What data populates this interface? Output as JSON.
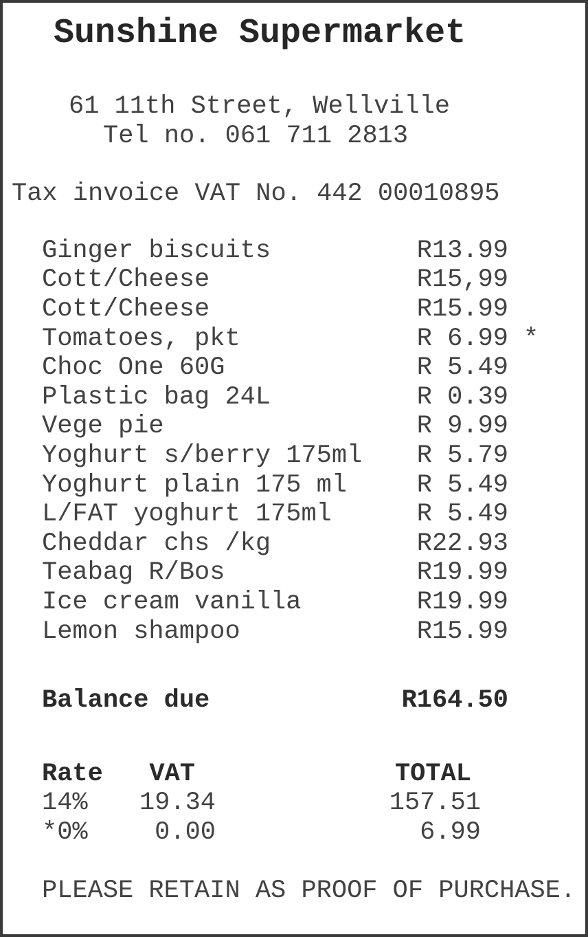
{
  "receipt": {
    "store_name": "Sunshine Supermarket",
    "address": {
      "line1": "61 11th Street, Wellville",
      "line2": "Tel no. 061 711 2813"
    },
    "tax_invoice_line": "Tax invoice VAT No. 442 00010895",
    "items": [
      {
        "name": "Ginger biscuits",
        "price": "R13.99",
        "star": ""
      },
      {
        "name": "Cott/Cheese",
        "price": "R15,99",
        "star": ""
      },
      {
        "name": "Cott/Cheese",
        "price": "R15.99",
        "star": ""
      },
      {
        "name": "Tomatoes, pkt",
        "price": "R 6.99",
        "star": "*"
      },
      {
        "name": "Choc One 60G",
        "price": "R 5.49",
        "star": ""
      },
      {
        "name": "Plastic bag 24L",
        "price": "R 0.39",
        "star": ""
      },
      {
        "name": "Vege pie",
        "price": "R 9.99",
        "star": ""
      },
      {
        "name": "Yoghurt s/berry 175ml",
        "price": "R 5.79",
        "star": ""
      },
      {
        "name": "Yoghurt plain 175 ml",
        "price": "R 5.49",
        "star": ""
      },
      {
        "name": "L/FAT yoghurt 175ml",
        "price": "R 5.49",
        "star": ""
      },
      {
        "name": "Cheddar chs /kg",
        "price": "R22.93",
        "star": ""
      },
      {
        "name": "Teabag R/Bos",
        "price": "R19.99",
        "star": ""
      },
      {
        "name": "Ice cream vanilla",
        "price": "R19.99",
        "star": ""
      },
      {
        "name": "Lemon shampoo",
        "price": "R15.99",
        "star": ""
      }
    ],
    "balance": {
      "label": "Balance due",
      "amount": "R164.50"
    },
    "vat_table": {
      "headers": {
        "rate": "Rate",
        "vat": "VAT",
        "total": "TOTAL"
      },
      "rows": [
        {
          "rate": "14%",
          "vat": "19.34",
          "total": "157.51"
        },
        {
          "rate": "*0%",
          "vat": "0.00",
          "total": "6.99"
        }
      ]
    },
    "footer": "PLEASE RETAIN AS PROOF OF PURCHASE.",
    "colors": {
      "text": "#424242",
      "bold_text": "#2b2b2b",
      "border": "#3a3a3a",
      "background": "#ffffff"
    }
  }
}
